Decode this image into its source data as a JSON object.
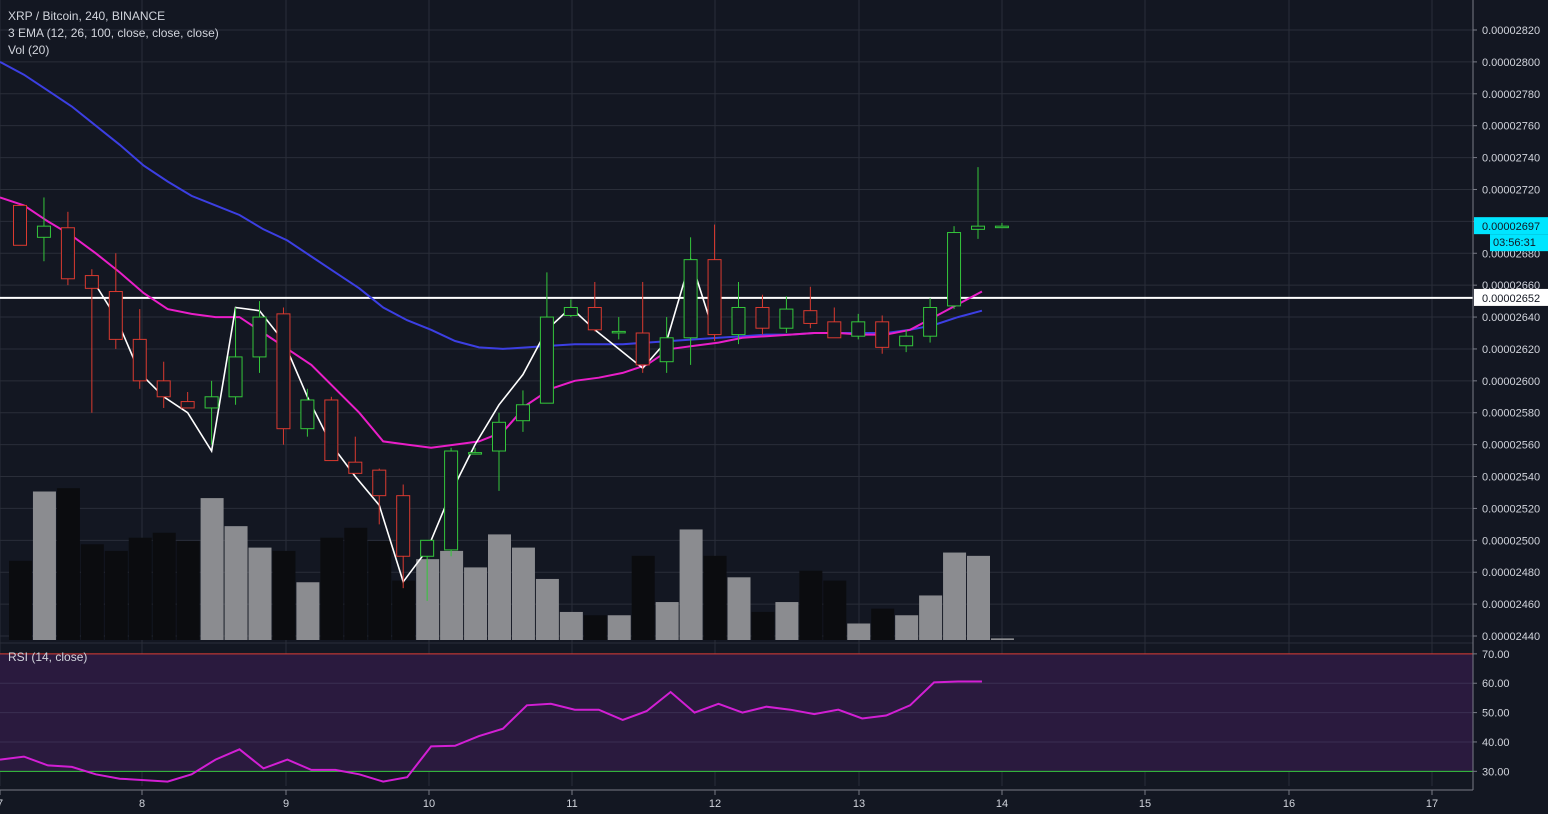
{
  "header": {
    "symbol_line": "XRP / Bitcoin, 240, BINANCE",
    "ema_line": "3 EMA (12, 26, 100, close, close, close)",
    "vol_line": "Vol (20)"
  },
  "rsi_panel": {
    "label": "RSI (14, close)"
  },
  "price_axis": {
    "ticks": [
      "0.00002820",
      "0.00002800",
      "0.00002780",
      "0.00002760",
      "0.00002740",
      "0.00002720",
      "0.00002700",
      "0.00002680",
      "0.00002660",
      "0.00002640",
      "0.00002620",
      "0.00002600",
      "0.00002580",
      "0.00002560",
      "0.00002540",
      "0.00002520",
      "0.00002500",
      "0.00002480",
      "0.00002460",
      "0.00002440"
    ],
    "current_price_label": "0.00002697",
    "countdown_label": "03:56:31",
    "level_label": "0.00002652"
  },
  "rsi_axis": {
    "ticks": [
      "70.00",
      "60.00",
      "50.00",
      "40.00",
      "30.00"
    ]
  },
  "time_axis": {
    "ticks": [
      "7",
      "8",
      "9",
      "10",
      "11",
      "12",
      "13",
      "14",
      "15",
      "16",
      "17"
    ]
  },
  "colors": {
    "background": "#131722",
    "grid": "#2a2e39",
    "candle_up": "#34c63b",
    "candle_down": "#d93a30",
    "ema_fast": "#e91ec8",
    "ema_slow": "#3c3fe3",
    "zigzag": "#ffffff",
    "volume_light": "#8b8c90",
    "volume_dark": "#0b0c0f",
    "rsi_line": "#d21fd4",
    "rsi_band": "#2a1a3e",
    "rsi_upper": "#d93a30",
    "rsi_lower": "#34c63b",
    "current_price_bg": "#00e5ff"
  },
  "chart_data": {
    "type": "candlestick",
    "title": "XRP / Bitcoin, 240, BINANCE",
    "interval_hours": 4,
    "x_ticks": [
      "7",
      "8",
      "9",
      "10",
      "11",
      "12",
      "13",
      "14",
      "15",
      "16",
      "17"
    ],
    "price_range": [
      2.44e-05,
      2.83e-05
    ],
    "horizontal_level": 2.652e-05,
    "current_price": 2.697e-05,
    "candles": [
      {
        "o": 2.71e-05,
        "h": 2.71e-05,
        "l": 2.685e-05,
        "c": 2.685e-05
      },
      {
        "o": 2.69e-05,
        "h": 2.715e-05,
        "l": 2.675e-05,
        "c": 2.697e-05
      },
      {
        "o": 2.696e-05,
        "h": 2.706e-05,
        "l": 2.66e-05,
        "c": 2.664e-05
      },
      {
        "o": 2.666e-05,
        "h": 2.67e-05,
        "l": 2.58e-05,
        "c": 2.658e-05
      },
      {
        "o": 2.656e-05,
        "h": 2.68e-05,
        "l": 2.62e-05,
        "c": 2.626e-05
      },
      {
        "o": 2.626e-05,
        "h": 2.645e-05,
        "l": 2.595e-05,
        "c": 2.6e-05
      },
      {
        "o": 2.6e-05,
        "h": 2.612e-05,
        "l": 2.583e-05,
        "c": 2.59e-05
      },
      {
        "o": 2.587e-05,
        "h": 2.593e-05,
        "l": 2.583e-05,
        "c": 2.583e-05
      },
      {
        "o": 2.583e-05,
        "h": 2.6e-05,
        "l": 2.56e-05,
        "c": 2.59e-05
      },
      {
        "o": 2.59e-05,
        "h": 2.646e-05,
        "l": 2.585e-05,
        "c": 2.615e-05
      },
      {
        "o": 2.615e-05,
        "h": 2.65e-05,
        "l": 2.605e-05,
        "c": 2.64e-05
      },
      {
        "o": 2.642e-05,
        "h": 2.646e-05,
        "l": 2.56e-05,
        "c": 2.57e-05
      },
      {
        "o": 2.57e-05,
        "h": 2.595e-05,
        "l": 2.565e-05,
        "c": 2.588e-05
      },
      {
        "o": 2.588e-05,
        "h": 2.59e-05,
        "l": 2.55e-05,
        "c": 2.55e-05
      },
      {
        "o": 2.549e-05,
        "h": 2.565e-05,
        "l": 2.542e-05,
        "c": 2.542e-05
      },
      {
        "o": 2.544e-05,
        "h": 2.545e-05,
        "l": 2.51e-05,
        "c": 2.528e-05
      },
      {
        "o": 2.528e-05,
        "h": 2.535e-05,
        "l": 2.47e-05,
        "c": 2.49e-05
      },
      {
        "o": 2.49e-05,
        "h": 2.5e-05,
        "l": 2.462e-05,
        "c": 2.5e-05
      },
      {
        "o": 2.494e-05,
        "h": 2.558e-05,
        "l": 2.49e-05,
        "c": 2.556e-05
      },
      {
        "o": 2.555e-05,
        "h": 2.558e-05,
        "l": 2.555e-05,
        "c": 2.555e-05
      },
      {
        "o": 2.556e-05,
        "h": 2.58e-05,
        "l": 2.531e-05,
        "c": 2.574e-05
      },
      {
        "o": 2.575e-05,
        "h": 2.594e-05,
        "l": 2.568e-05,
        "c": 2.585e-05
      },
      {
        "o": 2.586e-05,
        "h": 2.668e-05,
        "l": 2.586e-05,
        "c": 2.64e-05
      },
      {
        "o": 2.641e-05,
        "h": 2.651e-05,
        "l": 2.64e-05,
        "c": 2.646e-05
      },
      {
        "o": 2.646e-05,
        "h": 2.662e-05,
        "l": 2.631e-05,
        "c": 2.632e-05
      },
      {
        "o": 2.631e-05,
        "h": 2.64e-05,
        "l": 2.626e-05,
        "c": 2.631e-05
      },
      {
        "o": 2.63e-05,
        "h": 2.662e-05,
        "l": 2.605e-05,
        "c": 2.61e-05
      },
      {
        "o": 2.612e-05,
        "h": 2.64e-05,
        "l": 2.605e-05,
        "c": 2.627e-05
      },
      {
        "o": 2.627e-05,
        "h": 2.69e-05,
        "l": 2.61e-05,
        "c": 2.676e-05
      },
      {
        "o": 2.676e-05,
        "h": 2.698e-05,
        "l": 2.625e-05,
        "c": 2.629e-05
      },
      {
        "o": 2.629e-05,
        "h": 2.662e-05,
        "l": 2.623e-05,
        "c": 2.646e-05
      },
      {
        "o": 2.646e-05,
        "h": 2.654e-05,
        "l": 2.629e-05,
        "c": 2.633e-05
      },
      {
        "o": 2.633e-05,
        "h": 2.653e-05,
        "l": 2.63e-05,
        "c": 2.645e-05
      },
      {
        "o": 2.644e-05,
        "h": 2.659e-05,
        "l": 2.633e-05,
        "c": 2.636e-05
      },
      {
        "o": 2.637e-05,
        "h": 2.646e-05,
        "l": 2.627e-05,
        "c": 2.627e-05
      },
      {
        "o": 2.628e-05,
        "h": 2.642e-05,
        "l": 2.626e-05,
        "c": 2.637e-05
      },
      {
        "o": 2.637e-05,
        "h": 2.641e-05,
        "l": 2.617e-05,
        "c": 2.621e-05
      },
      {
        "o": 2.622e-05,
        "h": 2.632e-05,
        "l": 2.618e-05,
        "c": 2.628e-05
      },
      {
        "o": 2.628e-05,
        "h": 2.652e-05,
        "l": 2.624e-05,
        "c": 2.646e-05
      },
      {
        "o": 2.647e-05,
        "h": 2.697e-05,
        "l": 2.645e-05,
        "c": 2.693e-05
      },
      {
        "o": 2.695e-05,
        "h": 2.734e-05,
        "l": 2.689e-05,
        "c": 2.697e-05
      },
      {
        "o": 2.697e-05,
        "h": 2.699e-05,
        "l": 2.697e-05,
        "c": 2.697e-05
      }
    ],
    "volume": [
      0.48,
      0.9,
      0.92,
      0.58,
      0.54,
      0.62,
      0.65,
      0.6,
      0.86,
      0.69,
      0.56,
      0.54,
      0.35,
      0.62,
      0.68,
      0.6,
      0.36,
      0.49,
      0.54,
      0.44,
      0.64,
      0.56,
      0.37,
      0.17,
      0.15,
      0.15,
      0.51,
      0.23,
      0.67,
      0.51,
      0.38,
      0.17,
      0.23,
      0.42,
      0.36,
      0.1,
      0.19,
      0.15,
      0.27,
      0.53,
      0.51,
      0.01
    ],
    "ema_fast": [
      2.715e-05,
      2.71e-05,
      2.7e-05,
      2.691e-05,
      2.68e-05,
      2.668e-05,
      2.655e-05,
      2.645e-05,
      2.642e-05,
      2.64e-05,
      2.64e-05,
      2.63e-05,
      2.62e-05,
      2.61e-05,
      2.595e-05,
      2.58e-05,
      2.562e-05,
      2.56e-05,
      2.558e-05,
      2.56e-05,
      2.562e-05,
      2.568e-05,
      2.585e-05,
      2.595e-05,
      2.6e-05,
      2.602e-05,
      2.605e-05,
      2.61e-05,
      2.62e-05,
      2.622e-05,
      2.624e-05,
      2.627e-05,
      2.628e-05,
      2.629e-05,
      2.63e-05,
      2.63e-05,
      2.629e-05,
      2.629e-05,
      2.632e-05,
      2.64e-05,
      2.648e-05,
      2.656e-05
    ],
    "ema_slow": [
      2.8e-05,
      2.792e-05,
      2.782e-05,
      2.772e-05,
      2.76e-05,
      2.748e-05,
      2.735e-05,
      2.725e-05,
      2.716e-05,
      2.71e-05,
      2.704e-05,
      2.695e-05,
      2.688e-05,
      2.678e-05,
      2.668e-05,
      2.658e-05,
      2.646e-05,
      2.638e-05,
      2.632e-05,
      2.625e-05,
      2.621e-05,
      2.62e-05,
      2.621e-05,
      2.622e-05,
      2.623e-05,
      2.623e-05,
      2.623e-05,
      2.624e-05,
      2.625e-05,
      2.626e-05,
      2.627e-05,
      2.628e-05,
      2.629e-05,
      2.629e-05,
      2.63e-05,
      2.63e-05,
      2.63e-05,
      2.63e-05,
      2.632e-05,
      2.635e-05,
      2.64e-05,
      2.644e-05
    ],
    "zigzag": [
      {
        "i": 3,
        "v": 2.664e-05
      },
      {
        "i": 4,
        "v": 2.64e-05
      },
      {
        "i": 5,
        "v": 2.605e-05
      },
      {
        "i": 6,
        "v": 2.59e-05
      },
      {
        "i": 7,
        "v": 2.58e-05
      },
      {
        "i": 8,
        "v": 2.556e-05
      },
      {
        "i": 9,
        "v": 2.646e-05
      },
      {
        "i": 10,
        "v": 2.644e-05
      },
      {
        "i": 11,
        "v": 2.625e-05
      },
      {
        "i": 12,
        "v": 2.59e-05
      },
      {
        "i": 13,
        "v": 2.56e-05
      },
      {
        "i": 14,
        "v": 2.54e-05
      },
      {
        "i": 15,
        "v": 2.522e-05
      },
      {
        "i": 16,
        "v": 2.474e-05
      },
      {
        "i": 17,
        "v": 2.494e-05
      },
      {
        "i": 18,
        "v": 2.53e-05
      },
      {
        "i": 19,
        "v": 2.56e-05
      },
      {
        "i": 20,
        "v": 2.585e-05
      },
      {
        "i": 21,
        "v": 2.604e-05
      },
      {
        "i": 22,
        "v": 2.632e-05
      },
      {
        "i": 23,
        "v": 2.646e-05
      },
      {
        "i": 24,
        "v": 2.632e-05
      },
      {
        "i": 25,
        "v": 2.62e-05
      },
      {
        "i": 26,
        "v": 2.608e-05
      },
      {
        "i": 27,
        "v": 2.625e-05
      },
      {
        "i": 28,
        "v": 2.676e-05
      },
      {
        "i": 29,
        "v": 2.629e-05
      }
    ],
    "rsi": {
      "range": [
        25,
        72
      ],
      "upper": 70,
      "lower": 30,
      "values": [
        34,
        35,
        32,
        31.5,
        29,
        27.5,
        27,
        26.5,
        29,
        34,
        37.5,
        31,
        34,
        30.5,
        30.5,
        29,
        26.5,
        28,
        38.5,
        38.7,
        42,
        44.5,
        52.5,
        53,
        51,
        51,
        47.5,
        50.5,
        57,
        50,
        53,
        50,
        52,
        51,
        49.5,
        51,
        48,
        49,
        52.5,
        60.3,
        60.6,
        60.6
      ]
    }
  }
}
